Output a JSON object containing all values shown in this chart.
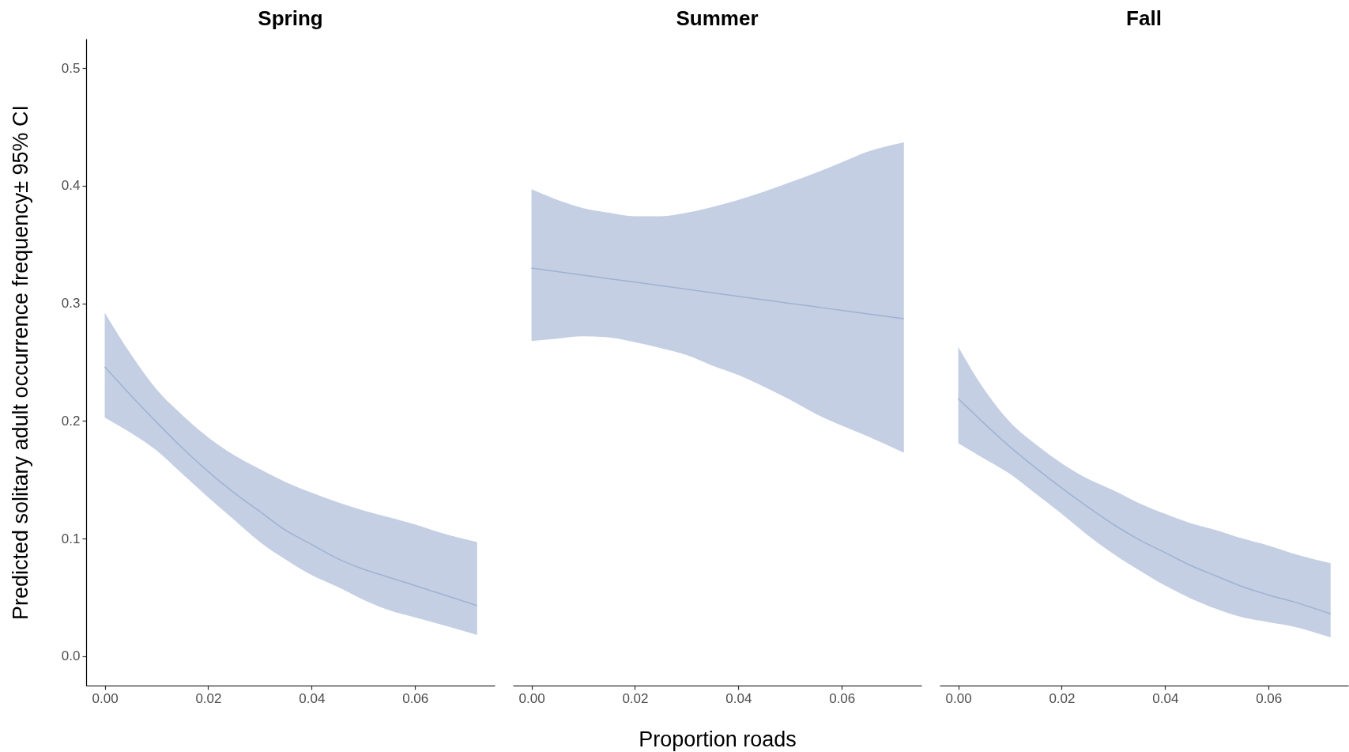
{
  "chart_data": [
    {
      "type": "line",
      "title": "Spring",
      "ylabel": "Predicted solitary adult occurrence frequency± 95% CI",
      "x": [
        0,
        0.005,
        0.01,
        0.015,
        0.02,
        0.025,
        0.03,
        0.035,
        0.04,
        0.045,
        0.05,
        0.055,
        0.06,
        0.065,
        0.072
      ],
      "series": [
        {
          "color": "#9fb2d2",
          "values": [
            0.246,
            0.222,
            0.199,
            0.177,
            0.157,
            0.139,
            0.123,
            0.107,
            0.095,
            0.083,
            0.074,
            0.067,
            0.06,
            0.053,
            0.043
          ],
          "lower": [
            0.203,
            0.19,
            0.175,
            0.155,
            0.135,
            0.116,
            0.097,
            0.082,
            0.069,
            0.059,
            0.048,
            0.039,
            0.033,
            0.027,
            0.018
          ],
          "upper": [
            0.292,
            0.257,
            0.227,
            0.205,
            0.186,
            0.171,
            0.159,
            0.148,
            0.139,
            0.131,
            0.124,
            0.118,
            0.112,
            0.105,
            0.097
          ]
        }
      ],
      "xlim": [
        -0.0036,
        0.0754
      ],
      "ylim": [
        -0.025,
        0.525
      ],
      "xticks": [
        {
          "value": 0,
          "label": "0.00"
        },
        {
          "value": 0.02,
          "label": "0.02"
        },
        {
          "value": 0.04,
          "label": "0.04"
        },
        {
          "value": 0.06,
          "label": "0.06"
        }
      ],
      "yticks": [
        {
          "value": 0,
          "label": "0.0"
        },
        0.1,
        0.2,
        0.3,
        0.4,
        0.5
      ]
    },
    {
      "type": "line",
      "title": "Summer",
      "xlabel": "Proportion roads",
      "x": [
        0,
        0.005,
        0.01,
        0.015,
        0.02,
        0.025,
        0.03,
        0.035,
        0.04,
        0.045,
        0.05,
        0.055,
        0.06,
        0.065,
        0.072
      ],
      "series": [
        {
          "color": "#9fb2d2",
          "values": [
            0.33,
            0.327,
            0.324,
            0.321,
            0.318,
            0.315,
            0.312,
            0.309,
            0.306,
            0.303,
            0.3,
            0.297,
            0.294,
            0.291,
            0.287
          ],
          "lower": [
            0.268,
            0.27,
            0.272,
            0.271,
            0.267,
            0.262,
            0.256,
            0.247,
            0.239,
            0.229,
            0.218,
            0.206,
            0.196,
            0.187,
            0.173
          ],
          "upper": [
            0.397,
            0.388,
            0.381,
            0.377,
            0.374,
            0.374,
            0.377,
            0.382,
            0.388,
            0.395,
            0.403,
            0.411,
            0.42,
            0.429,
            0.437
          ]
        }
      ],
      "xlim": [
        -0.0036,
        0.0754
      ],
      "ylim": [
        -0.025,
        0.5
      ],
      "xticks": [
        {
          "value": 0,
          "label": "0.00"
        },
        {
          "value": 0.02,
          "label": "0.02"
        },
        {
          "value": 0.04,
          "label": "0.04"
        },
        {
          "value": 0.06,
          "label": "0.06"
        }
      ],
      "yticks": [
        0.1,
        0.2,
        0.3,
        0.4,
        0.5
      ],
      "tick_labels": "x"
    },
    {
      "type": "line",
      "title": "Fall",
      "x": [
        0,
        0.005,
        0.01,
        0.015,
        0.02,
        0.025,
        0.03,
        0.035,
        0.04,
        0.045,
        0.05,
        0.055,
        0.06,
        0.065,
        0.072
      ],
      "series": [
        {
          "color": "#9fb2d2",
          "values": [
            0.219,
            0.198,
            0.178,
            0.16,
            0.143,
            0.127,
            0.112,
            0.099,
            0.088,
            0.077,
            0.068,
            0.059,
            0.052,
            0.046,
            0.036
          ],
          "lower": [
            0.181,
            0.168,
            0.155,
            0.138,
            0.121,
            0.103,
            0.087,
            0.073,
            0.06,
            0.049,
            0.04,
            0.033,
            0.029,
            0.025,
            0.016
          ],
          "upper": [
            0.263,
            0.227,
            0.199,
            0.18,
            0.164,
            0.151,
            0.141,
            0.13,
            0.121,
            0.113,
            0.107,
            0.1,
            0.094,
            0.087,
            0.079
          ]
        }
      ],
      "xlim": [
        -0.0036,
        0.0754
      ],
      "ylim": [
        -0.025,
        0.5
      ],
      "xticks": [
        {
          "value": 0,
          "label": "0.00"
        },
        {
          "value": 0.02,
          "label": "0.02"
        },
        {
          "value": 0.04,
          "label": "0.04"
        },
        {
          "value": 0.06,
          "label": "0.06"
        }
      ],
      "yticks": [
        0.1,
        0.2,
        0.3,
        0.4,
        0.5
      ],
      "tick_labels": "x"
    }
  ]
}
